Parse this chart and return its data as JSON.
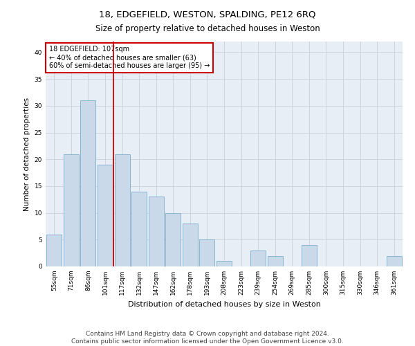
{
  "title": "18, EDGEFIELD, WESTON, SPALDING, PE12 6RQ",
  "subtitle": "Size of property relative to detached houses in Weston",
  "xlabel": "Distribution of detached houses by size in Weston",
  "ylabel": "Number of detached properties",
  "categories": [
    "55sqm",
    "71sqm",
    "86sqm",
    "101sqm",
    "117sqm",
    "132sqm",
    "147sqm",
    "162sqm",
    "178sqm",
    "193sqm",
    "208sqm",
    "223sqm",
    "239sqm",
    "254sqm",
    "269sqm",
    "285sqm",
    "300sqm",
    "315sqm",
    "330sqm",
    "346sqm",
    "361sqm"
  ],
  "values": [
    6,
    21,
    31,
    19,
    21,
    14,
    13,
    10,
    8,
    5,
    1,
    0,
    3,
    2,
    0,
    4,
    0,
    0,
    0,
    0,
    2
  ],
  "bar_color": "#c9d9ea",
  "bar_edge_color": "#7aaecb",
  "redline_x": 3.5,
  "annotation_line1": "18 EDGEFIELD: 107sqm",
  "annotation_line2": "← 40% of detached houses are smaller (63)",
  "annotation_line3": "60% of semi-detached houses are larger (95) →",
  "annotation_box_facecolor": "#ffffff",
  "annotation_box_edgecolor": "#cc0000",
  "redline_color": "#cc0000",
  "ylim": [
    0,
    42
  ],
  "yticks": [
    0,
    5,
    10,
    15,
    20,
    25,
    30,
    35,
    40
  ],
  "grid_color": "#c8d0da",
  "bg_color": "#e8eef5",
  "footer1": "Contains HM Land Registry data © Crown copyright and database right 2024.",
  "footer2": "Contains public sector information licensed under the Open Government Licence v3.0.",
  "title_fontsize": 9.5,
  "subtitle_fontsize": 8.5,
  "xlabel_fontsize": 8,
  "ylabel_fontsize": 7.5,
  "tick_fontsize": 6.5,
  "annotation_fontsize": 7,
  "footer_fontsize": 6.5
}
